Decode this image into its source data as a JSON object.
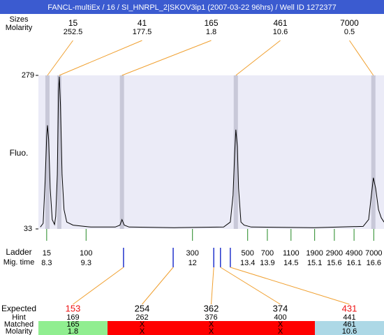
{
  "title": "FANCL-multiEx / 16 / SI_HNRPL_2|SKOV3ip1 (2007-03-22 96hrs) / Well ID 1272377",
  "peaks": {
    "labels": [
      "Sizes",
      "Molarity"
    ],
    "sizes": [
      15,
      41,
      165,
      461,
      7000
    ],
    "molarity": [
      252.5,
      177.5,
      1.8,
      10.6,
      0.5
    ],
    "times": [
      8.32,
      8.62,
      10.21,
      13.1,
      16.59
    ],
    "line_color": "#f0a030",
    "band_color": "#c8c8d8"
  },
  "chart_data": {
    "type": "line",
    "y_label": "Fluo.",
    "x": [
      8.14,
      8.21,
      8.26,
      8.3,
      8.32,
      8.35,
      8.39,
      8.44,
      8.5,
      8.53,
      8.57,
      8.6,
      8.62,
      8.65,
      8.69,
      8.74,
      8.81,
      8.97,
      9.42,
      10.04,
      10.16,
      10.21,
      10.27,
      10.39,
      11.54,
      12.79,
      12.96,
      13.03,
      13.07,
      13.1,
      13.14,
      13.17,
      13.23,
      13.31,
      13.49,
      15.09,
      16.33,
      16.47,
      16.54,
      16.59,
      16.65,
      16.72,
      16.79,
      16.86
    ],
    "values": [
      36,
      42,
      109,
      182,
      199,
      176,
      98,
      48,
      40,
      53,
      120,
      254,
      277,
      232,
      120,
      64,
      44,
      39,
      36,
      36,
      39,
      48,
      39,
      36,
      35,
      36,
      44,
      87,
      154,
      192,
      165,
      98,
      44,
      39,
      36,
      35,
      37,
      48,
      87,
      115,
      98,
      64,
      51,
      44
    ],
    "xlim": [
      8.09,
      16.86
    ],
    "ylim": [
      33,
      279
    ],
    "yticks": [
      33,
      279
    ],
    "color": "#000000",
    "background": "#ebebf7"
  },
  "ladder": {
    "labels": [
      "Ladder",
      "Mig. time"
    ],
    "sizes": [
      15,
      100,
      300,
      500,
      700,
      1100,
      1900,
      2900,
      4900,
      7000
    ],
    "times": [
      8.3,
      9.3,
      12,
      13.4,
      13.9,
      14.5,
      15.1,
      15.6,
      16.1,
      16.6
    ],
    "color": "#228822"
  },
  "expected": {
    "labels": [
      "Expected",
      "Hint",
      "Matched",
      "Molarity"
    ],
    "times": [
      10.25,
      11.51,
      12.54,
      12.71,
      12.96
    ],
    "line_color": "#2233cc",
    "values": [
      153,
      254,
      362,
      374,
      431
    ],
    "value_colors": [
      "#ee1111",
      "#000000",
      "#000000",
      "#000000",
      "#ee1111"
    ],
    "hint": [
      169,
      262,
      376,
      400,
      441
    ],
    "matched": [
      165,
      "X",
      "X",
      "X",
      461
    ],
    "molarity": [
      1.8,
      "X",
      "X",
      "X",
      10.6
    ],
    "cell_colors": [
      "#90ee90",
      "#ff0000",
      "#ff0000",
      "#ff0000",
      "#add8e6"
    ]
  }
}
